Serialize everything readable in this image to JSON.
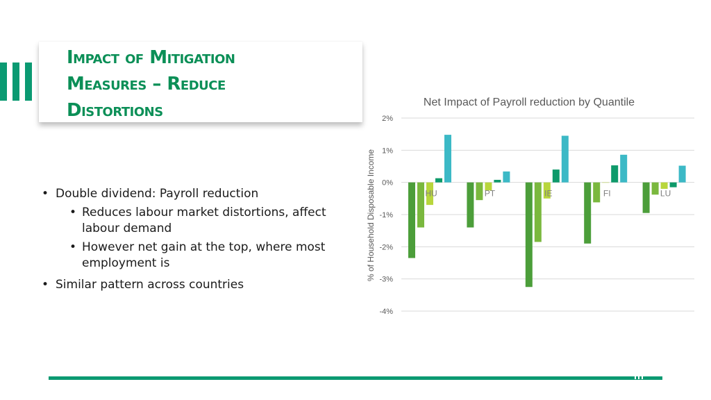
{
  "slide": {
    "title_lines": [
      "Impact of Mitigation",
      "Measures – Reduce",
      "Distortions"
    ],
    "accent_color": "#0b9a72",
    "title_color": "#0b8f57"
  },
  "bullets": [
    {
      "text": "Double dividend: Payroll reduction",
      "sub": [
        "Reduces labour market distortions, affect labour demand",
        "However net gain at the top, where most employment is"
      ]
    },
    {
      "text": "Similar pattern across countries",
      "sub": []
    }
  ],
  "chart_data": {
    "type": "bar",
    "title": "Net Impact of Payroll reduction by Quantile",
    "ylabel": "% of Household Disposable Income",
    "xlabel": "",
    "categories": [
      "HU",
      "PT",
      "IE",
      "FI",
      "LU"
    ],
    "ylim": [
      -4,
      2
    ],
    "yticks": [
      2,
      1,
      0,
      -1,
      -2,
      -3,
      -4
    ],
    "ytick_labels": [
      "2%",
      "1%",
      "0%",
      "-1%",
      "-2%",
      "-3%",
      "-4%"
    ],
    "grid": true,
    "legend": "none",
    "series": [
      {
        "color": "#4c9e3a",
        "values": [
          -2.35,
          -1.4,
          -3.25,
          -1.9,
          -0.95
        ]
      },
      {
        "color": "#7ab83e",
        "values": [
          -1.4,
          -0.55,
          -1.85,
          -0.62,
          -0.38
        ]
      },
      {
        "color": "#b8d63c",
        "values": [
          -0.7,
          -0.25,
          -0.5,
          0.0,
          -0.2
        ]
      },
      {
        "color": "#0e9a6a",
        "values": [
          0.13,
          0.08,
          0.4,
          0.53,
          -0.15
        ]
      },
      {
        "color": "#3cb9c6",
        "values": [
          1.48,
          0.34,
          1.45,
          0.86,
          0.52
        ]
      }
    ]
  }
}
